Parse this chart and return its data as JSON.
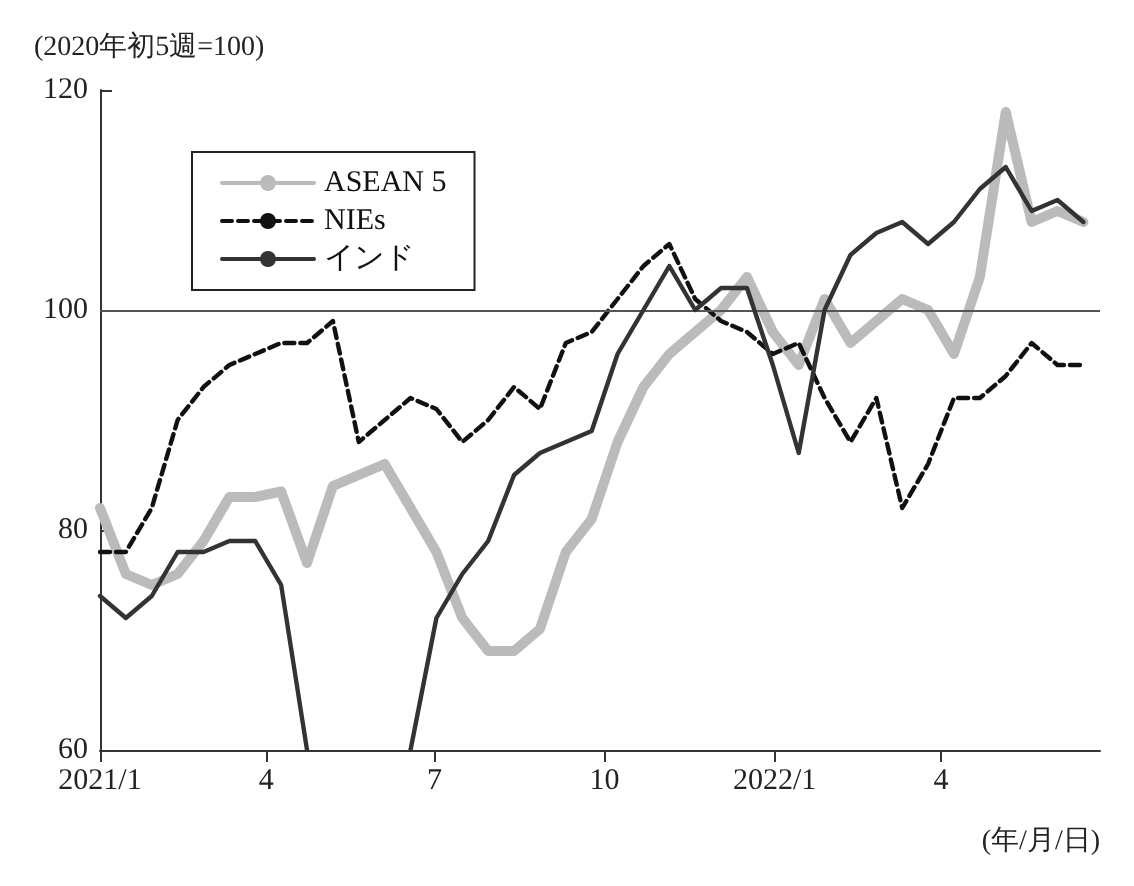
{
  "chart_data": {
    "type": "line",
    "ylabel": "(2020年初5週=100)",
    "xlabel": "(年/月/日)",
    "x": [
      "2021-01-01",
      "2021-01-15",
      "2021-01-29",
      "2021-02-12",
      "2021-02-26",
      "2021-03-12",
      "2021-03-26",
      "2021-04-09",
      "2021-04-23",
      "2021-05-07",
      "2021-05-21",
      "2021-06-04",
      "2021-06-18",
      "2021-07-02",
      "2021-07-16",
      "2021-07-30",
      "2021-08-13",
      "2021-08-27",
      "2021-09-10",
      "2021-09-24",
      "2021-10-08",
      "2021-10-22",
      "2021-11-05",
      "2021-11-19",
      "2021-12-03",
      "2021-12-17",
      "2021-12-31",
      "2022-01-14",
      "2022-01-28",
      "2022-02-11",
      "2022-02-25",
      "2022-03-11",
      "2022-03-25",
      "2022-04-08",
      "2022-04-22",
      "2022-05-06",
      "2022-05-20",
      "2022-06-03",
      "2022-06-17"
    ],
    "series": [
      {
        "name": "ASEAN 5",
        "color": "#bbbbbb",
        "line_style": "solid",
        "values": [
          82,
          76,
          75,
          76,
          79,
          83,
          83,
          83.5,
          77,
          84,
          85,
          86,
          82,
          78,
          72,
          69,
          69,
          71,
          78,
          81,
          88,
          93,
          96,
          98,
          100,
          103,
          98,
          95,
          101,
          97,
          99,
          101,
          100,
          96,
          103,
          118,
          108,
          109,
          108
        ]
      },
      {
        "name": "NIEs",
        "color": "#111111",
        "line_style": "dashed",
        "values": [
          78,
          78,
          82,
          90,
          93,
          95,
          96,
          97,
          97,
          99,
          88,
          90,
          92,
          91,
          88,
          90,
          93,
          91,
          97,
          98,
          101,
          104,
          106,
          101,
          99,
          98,
          96,
          97,
          92,
          88,
          92,
          82,
          86,
          92,
          92,
          94,
          97,
          95,
          95
        ]
      },
      {
        "name": "インド",
        "color": "#333333",
        "line_style": "solid",
        "values": [
          74,
          72,
          74,
          78,
          78,
          79,
          79,
          75,
          60,
          null,
          null,
          null,
          60,
          72,
          76,
          79,
          85,
          87,
          88,
          89,
          96,
          100,
          104,
          100,
          102,
          102,
          95,
          87,
          100,
          105,
          107,
          108,
          106,
          108,
          111,
          113,
          109,
          110,
          108
        ]
      }
    ],
    "xlim": [
      "2021-01-01",
      "2022-06-26"
    ],
    "xticks": [
      {
        "value": "2021-01-01",
        "label": "2021/1"
      },
      {
        "value": "2021-04-01",
        "label": "4"
      },
      {
        "value": "2021-07-01",
        "label": "7"
      },
      {
        "value": "2021-10-01",
        "label": "10"
      },
      {
        "value": "2022-01-01",
        "label": "2022/1"
      },
      {
        "value": "2022-04-01",
        "label": "4"
      }
    ],
    "ylim": [
      60,
      120
    ],
    "yticks": [
      60,
      80,
      100,
      120
    ],
    "ref_lines": [
      {
        "axis": "y",
        "value": 100,
        "color": "#555555"
      }
    ],
    "grid": false,
    "legend": "top left"
  }
}
